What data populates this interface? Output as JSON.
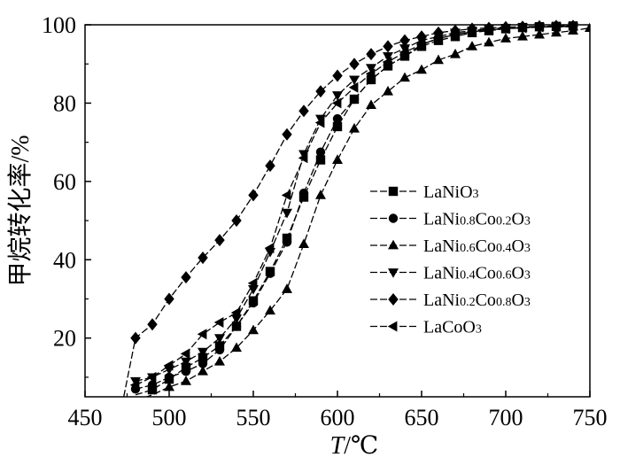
{
  "chart_data": {
    "type": "line",
    "xlabel": "T/℃",
    "xlabel_italic": "T",
    "xlabel_unit": "/℃",
    "ylabel": "甲烷转化率/%",
    "xlim": [
      450,
      750
    ],
    "ylim": [
      5,
      100
    ],
    "xticks": [
      450,
      500,
      550,
      600,
      650,
      700,
      750
    ],
    "yticks": [
      20,
      40,
      60,
      80,
      100
    ],
    "grid": false,
    "legend_position": "right",
    "series": [
      {
        "name_main": "LaNiO",
        "name_sub": "3",
        "marker": "square",
        "points": [
          [
            480,
            5.5
          ],
          [
            490,
            6.8
          ],
          [
            500,
            9.5
          ],
          [
            510,
            12.5
          ],
          [
            520,
            15
          ],
          [
            530,
            18
          ],
          [
            540,
            23
          ],
          [
            550,
            29.5
          ],
          [
            560,
            37
          ],
          [
            570,
            45.5
          ],
          [
            580,
            56
          ],
          [
            590,
            65.5
          ],
          [
            600,
            74
          ],
          [
            610,
            81
          ],
          [
            620,
            86
          ],
          [
            630,
            89.5
          ],
          [
            640,
            92
          ],
          [
            650,
            94.5
          ],
          [
            660,
            96
          ],
          [
            670,
            97
          ],
          [
            680,
            98
          ],
          [
            690,
            98.5
          ],
          [
            700,
            99
          ],
          [
            710,
            99.3
          ],
          [
            720,
            99.5
          ],
          [
            730,
            99.6
          ],
          [
            740,
            99.7
          ]
        ]
      },
      {
        "name_main": "LaNi",
        "name_sub1": "0.8",
        "name_mid": "Co",
        "name_sub2": "0.2",
        "name_end": "O",
        "name_sub3": "3",
        "marker": "circle",
        "points": [
          [
            480,
            7
          ],
          [
            490,
            8
          ],
          [
            500,
            10
          ],
          [
            510,
            11.5
          ],
          [
            520,
            13.5
          ],
          [
            530,
            17
          ],
          [
            540,
            23
          ],
          [
            550,
            29
          ],
          [
            560,
            36.5
          ],
          [
            570,
            44.5
          ],
          [
            580,
            57
          ],
          [
            590,
            67.5
          ],
          [
            600,
            76
          ],
          [
            610,
            81
          ],
          [
            620,
            86
          ],
          [
            630,
            89.5
          ],
          [
            640,
            92
          ],
          [
            650,
            95
          ],
          [
            660,
            96.5
          ],
          [
            670,
            97.5
          ],
          [
            680,
            98.3
          ],
          [
            690,
            98.8
          ],
          [
            700,
            99.1
          ],
          [
            710,
            99.3
          ],
          [
            720,
            99.5
          ],
          [
            730,
            99.6
          ],
          [
            740,
            99.7
          ]
        ]
      },
      {
        "name_main": "LaNi",
        "name_sub1": "0.6",
        "name_mid": "Co",
        "name_sub2": "0.4",
        "name_end": "O",
        "name_sub3": "3",
        "marker": "triangle-up",
        "points": [
          [
            480,
            4
          ],
          [
            490,
            5.5
          ],
          [
            500,
            7.5
          ],
          [
            510,
            9
          ],
          [
            520,
            11.5
          ],
          [
            530,
            14
          ],
          [
            540,
            17.5
          ],
          [
            550,
            22
          ],
          [
            560,
            27
          ],
          [
            570,
            32.5
          ],
          [
            580,
            44
          ],
          [
            590,
            56.5
          ],
          [
            600,
            65.5
          ],
          [
            610,
            73.5
          ],
          [
            620,
            79.5
          ],
          [
            630,
            83
          ],
          [
            640,
            86.5
          ],
          [
            650,
            88.5
          ],
          [
            660,
            91
          ],
          [
            670,
            92.5
          ],
          [
            680,
            94.5
          ],
          [
            690,
            95.5
          ],
          [
            700,
            96.5
          ],
          [
            710,
            97
          ],
          [
            720,
            97.5
          ],
          [
            730,
            98
          ],
          [
            740,
            98.5
          ],
          [
            750,
            99.2
          ]
        ]
      },
      {
        "name_main": "LaNi",
        "name_sub1": "0.4",
        "name_mid": "Co",
        "name_sub2": "0.6",
        "name_end": "O",
        "name_sub3": "3",
        "marker": "triangle-down",
        "points": [
          [
            480,
            9
          ],
          [
            490,
            10
          ],
          [
            500,
            12
          ],
          [
            510,
            14
          ],
          [
            520,
            16.5
          ],
          [
            530,
            20
          ],
          [
            540,
            25
          ],
          [
            550,
            32.5
          ],
          [
            560,
            42
          ],
          [
            570,
            52
          ],
          [
            580,
            67
          ],
          [
            590,
            76
          ],
          [
            600,
            82
          ],
          [
            610,
            86
          ],
          [
            620,
            89
          ],
          [
            630,
            92
          ],
          [
            640,
            94
          ],
          [
            650,
            96
          ],
          [
            660,
            97
          ],
          [
            670,
            98
          ],
          [
            680,
            98.5
          ],
          [
            690,
            99
          ],
          [
            700,
            99.2
          ],
          [
            710,
            99.3
          ],
          [
            720,
            99.4
          ],
          [
            730,
            99.5
          ],
          [
            740,
            99.5
          ]
        ]
      },
      {
        "name_main": "LaNi",
        "name_sub1": "0.2",
        "name_mid": "Co",
        "name_sub2": "0.8",
        "name_end": "O",
        "name_sub3": "3",
        "marker": "diamond",
        "points": [
          [
            473,
            5
          ],
          [
            480,
            20
          ],
          [
            490,
            23.5
          ],
          [
            500,
            30
          ],
          [
            510,
            35.5
          ],
          [
            520,
            40.5
          ],
          [
            530,
            45
          ],
          [
            540,
            50
          ],
          [
            550,
            56.5
          ],
          [
            560,
            64
          ],
          [
            570,
            72
          ],
          [
            580,
            78
          ],
          [
            590,
            83
          ],
          [
            600,
            87
          ],
          [
            610,
            90
          ],
          [
            620,
            92.5
          ],
          [
            630,
            94.5
          ],
          [
            640,
            96
          ],
          [
            650,
            97
          ],
          [
            660,
            98
          ],
          [
            670,
            98.5
          ],
          [
            680,
            99
          ],
          [
            690,
            99.2
          ],
          [
            700,
            99.4
          ],
          [
            710,
            99.5
          ],
          [
            720,
            99.6
          ],
          [
            730,
            99.7
          ],
          [
            740,
            99.7
          ]
        ]
      },
      {
        "name_main": "LaCoO",
        "name_sub": "3",
        "marker": "triangle-left",
        "points": [
          [
            480,
            8
          ],
          [
            490,
            10
          ],
          [
            500,
            13
          ],
          [
            510,
            16
          ],
          [
            520,
            21
          ],
          [
            530,
            24
          ],
          [
            540,
            26.5
          ],
          [
            550,
            34
          ],
          [
            560,
            43
          ],
          [
            570,
            56.5
          ],
          [
            580,
            66
          ],
          [
            590,
            75
          ],
          [
            600,
            80
          ],
          [
            610,
            84
          ],
          [
            620,
            87.5
          ],
          [
            630,
            90.5
          ],
          [
            640,
            93
          ],
          [
            650,
            95
          ],
          [
            660,
            96.5
          ],
          [
            670,
            97.5
          ],
          [
            680,
            98.2
          ],
          [
            690,
            98.7
          ],
          [
            700,
            99
          ],
          [
            710,
            99.2
          ],
          [
            720,
            99.4
          ],
          [
            730,
            99.5
          ],
          [
            740,
            99.6
          ]
        ]
      }
    ]
  }
}
